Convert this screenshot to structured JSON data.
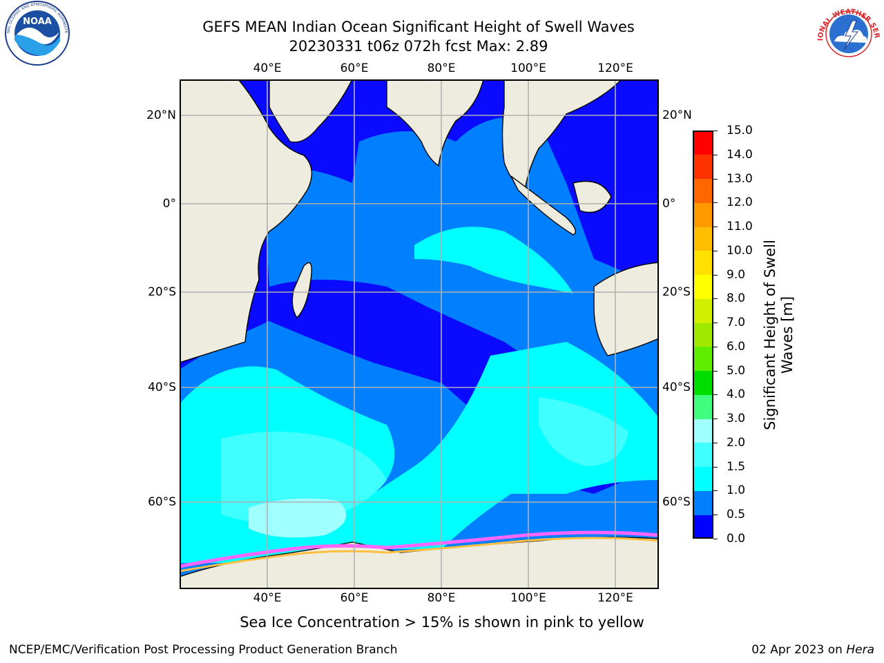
{
  "header": {
    "title": "GEFS MEAN Indian Ocean Significant Height of Swell Waves",
    "subtitle": "20230331 t06z 072h fcst   Max: 2.89"
  },
  "logos": {
    "left": {
      "text": "NOAA"
    },
    "right": {
      "text": "NATIONAL WEATHER SERVICE"
    }
  },
  "map": {
    "region": "Indian Ocean",
    "lon_labels": [
      "40°E",
      "60°E",
      "80°E",
      "100°E",
      "120°E"
    ],
    "lat_labels_left": [
      "20°N",
      "0°",
      "20°S",
      "40°S",
      "60°S"
    ],
    "lat_labels_right": [
      "20°N",
      "0°",
      "20°S",
      "40°S",
      "60°S"
    ],
    "colors": {
      "land": "#eeecde",
      "grid": "#b0b0b0",
      "ice": "#ff66ff"
    }
  },
  "colorbar": {
    "title_line1": "Significant Height of Swell",
    "title_line2": "Waves [m]",
    "levels": [
      "0.0",
      "0.5",
      "1.0",
      "1.5",
      "2.0",
      "3.0",
      "4.0",
      "5.0",
      "6.0",
      "7.0",
      "8.0",
      "9.0",
      "10.0",
      "11.0",
      "12.0",
      "13.0",
      "14.0",
      "15.0"
    ],
    "colors": [
      "#0000ff",
      "#0080ff",
      "#00ffff",
      "#40ffff",
      "#a0ffff",
      "#40ff80",
      "#00dd00",
      "#60ee00",
      "#a0e800",
      "#d0f000",
      "#ffff00",
      "#ffe000",
      "#ffbf00",
      "#ff9900",
      "#ff6600",
      "#ff3300",
      "#ff0000"
    ]
  },
  "note": "Sea Ice Concentration > 15% is shown in pink to yellow",
  "footer": {
    "left": "NCEP/EMC/Verification Post Processing Product Generation Branch",
    "date": "02 Apr 2023 on ",
    "machine": "Hera"
  }
}
